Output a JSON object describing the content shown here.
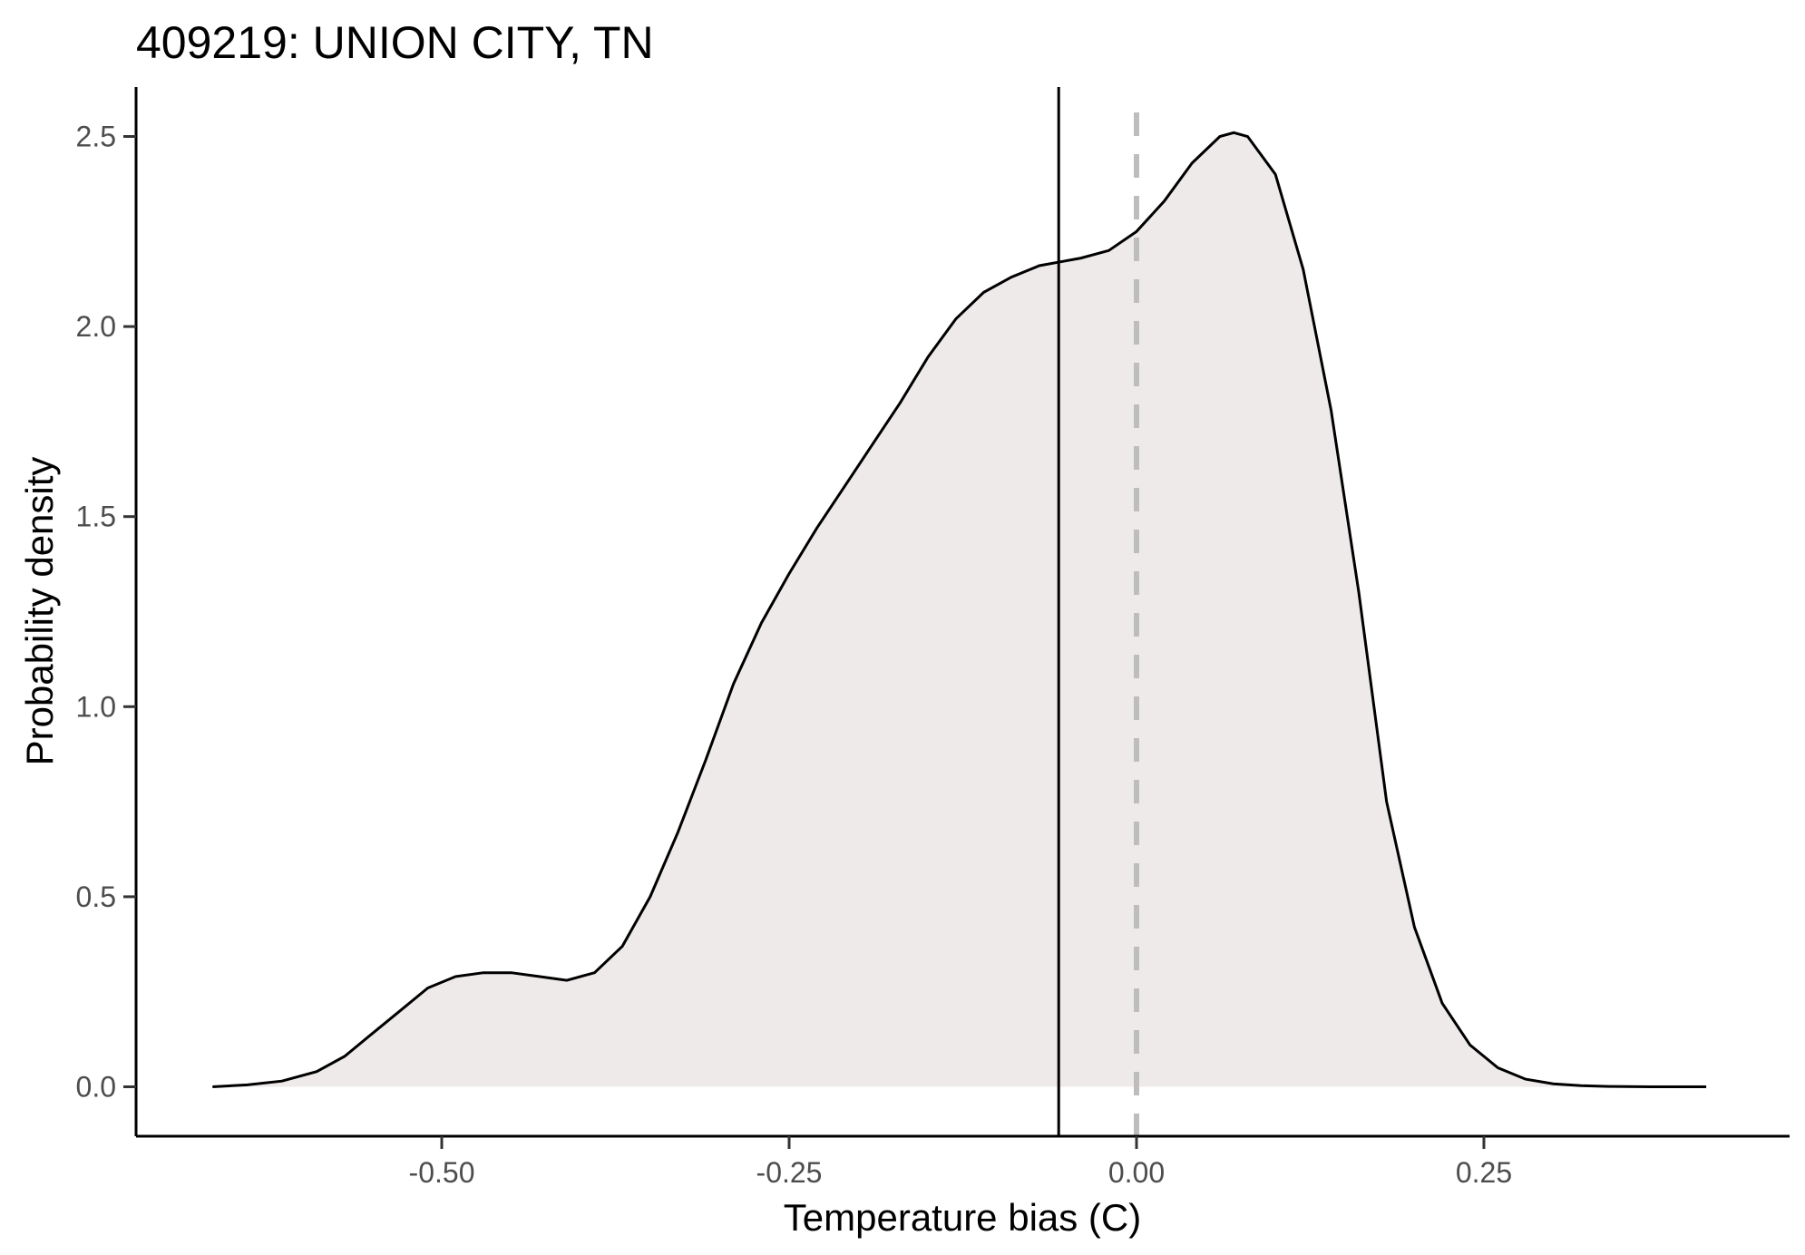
{
  "chart_data": {
    "type": "area",
    "title": "409219: UNION CITY, TN",
    "xlabel": "Temperature bias (C)",
    "ylabel": "Probability density",
    "xlim": [
      -0.72,
      0.47
    ],
    "ylim": [
      -0.13,
      2.63
    ],
    "x_ticks": [
      -0.5,
      -0.25,
      0.0,
      0.25
    ],
    "x_tick_labels": [
      "-0.50",
      "-0.25",
      "0.00",
      "0.25"
    ],
    "y_ticks": [
      0.0,
      0.5,
      1.0,
      1.5,
      2.0,
      2.5
    ],
    "y_tick_labels": [
      "0.0",
      "0.5",
      "1.0",
      "1.5",
      "2.0",
      "2.5"
    ],
    "grid": false,
    "legend": "none",
    "fill_color": "#efeaea",
    "line_color": "#000000",
    "reference_lines": [
      {
        "x": -0.056,
        "style": "solid",
        "color": "#000000"
      },
      {
        "x": 0.0,
        "style": "dashed",
        "color": "#bdbdbd"
      }
    ],
    "series": [
      {
        "x": [
          -0.665,
          -0.64,
          -0.615,
          -0.59,
          -0.57,
          -0.55,
          -0.53,
          -0.51,
          -0.49,
          -0.47,
          -0.45,
          -0.43,
          -0.41,
          -0.39,
          -0.37,
          -0.35,
          -0.33,
          -0.31,
          -0.29,
          -0.27,
          -0.25,
          -0.23,
          -0.21,
          -0.19,
          -0.17,
          -0.15,
          -0.13,
          -0.11,
          -0.09,
          -0.07,
          -0.055,
          -0.04,
          -0.02,
          0.0,
          0.02,
          0.04,
          0.06,
          0.07,
          0.08,
          0.1,
          0.12,
          0.14,
          0.16,
          0.18,
          0.2,
          0.22,
          0.24,
          0.26,
          0.28,
          0.3,
          0.32,
          0.34,
          0.37,
          0.41
        ],
        "y": [
          0.0,
          0.005,
          0.015,
          0.04,
          0.08,
          0.14,
          0.2,
          0.26,
          0.29,
          0.3,
          0.3,
          0.29,
          0.28,
          0.3,
          0.37,
          0.5,
          0.67,
          0.86,
          1.06,
          1.22,
          1.35,
          1.47,
          1.58,
          1.69,
          1.8,
          1.92,
          2.02,
          2.09,
          2.13,
          2.16,
          2.17,
          2.18,
          2.2,
          2.25,
          2.33,
          2.43,
          2.5,
          2.51,
          2.5,
          2.4,
          2.15,
          1.78,
          1.3,
          0.75,
          0.42,
          0.22,
          0.11,
          0.05,
          0.02,
          0.008,
          0.003,
          0.001,
          0.0,
          0.0
        ]
      }
    ]
  }
}
